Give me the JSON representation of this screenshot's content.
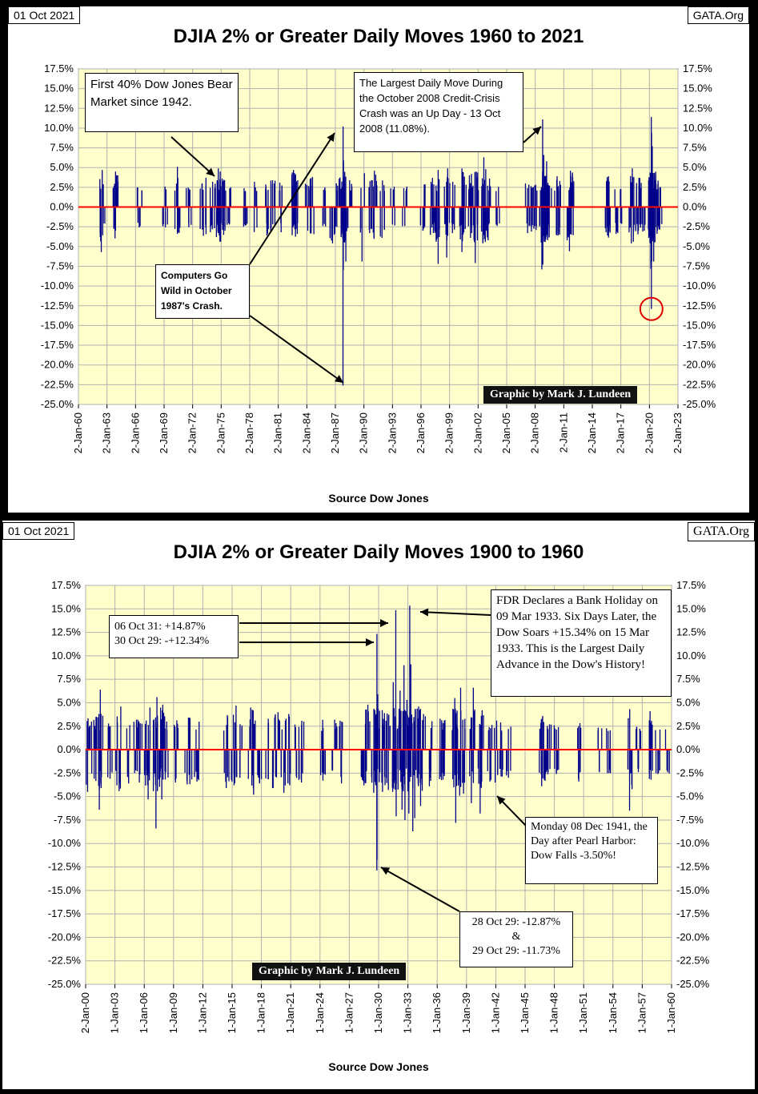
{
  "chart_data": [
    {
      "type": "bar",
      "date_stamp": "01 Oct 2021",
      "source_tag": "GATA.Org",
      "title": "DJIA 2% or Greater Daily Moves 1960 to 2021",
      "xlabel": "Source Dow Jones",
      "credit": "Graphic by Mark J. Lundeen",
      "ylim": [
        -25,
        17.5
      ],
      "y_ticks": [
        "17.5%",
        "15.0%",
        "12.5%",
        "10.0%",
        "7.5%",
        "5.0%",
        "2.5%",
        "0.0%",
        "-2.5%",
        "-5.0%",
        "-7.5%",
        "-10.0%",
        "-12.5%",
        "-15.0%",
        "-17.5%",
        "-20.0%",
        "-22.5%",
        "-25.0%"
      ],
      "x_ticks": [
        "2-Jan-60",
        "2-Jan-63",
        "2-Jan-66",
        "2-Jan-69",
        "2-Jan-72",
        "2-Jan-75",
        "2-Jan-78",
        "2-Jan-81",
        "2-Jan-84",
        "2-Jan-87",
        "2-Jan-90",
        "2-Jan-93",
        "2-Jan-96",
        "2-Jan-99",
        "2-Jan-02",
        "2-Jan-05",
        "2-Jan-08",
        "2-Jan-11",
        "2-Jan-14",
        "2-Jan-17",
        "2-Jan-20",
        "2-Jan-23"
      ],
      "xlim": [
        1960,
        2023
      ],
      "grid": true,
      "bar_color": "#00008B",
      "zero_line_color": "#FF0000",
      "moves": [
        [
          1962.4,
          -5.7
        ],
        [
          1962.5,
          4.7
        ],
        [
          1963.9,
          4.5
        ],
        [
          1963.9,
          -3.0
        ],
        [
          1966.4,
          -2.5
        ],
        [
          1969.1,
          2.6
        ],
        [
          1970.4,
          5.1
        ],
        [
          1970.4,
          -3.4
        ],
        [
          1971.6,
          2.3
        ],
        [
          1973.0,
          3.0
        ],
        [
          1973.4,
          3.7
        ],
        [
          1974.1,
          3.2
        ],
        [
          1974.5,
          -3.8
        ],
        [
          1974.7,
          4.9
        ],
        [
          1974.8,
          -3.6
        ],
        [
          1974.9,
          4.5
        ],
        [
          1975.1,
          3.6
        ],
        [
          1975.4,
          -3.0
        ],
        [
          1976.0,
          2.5
        ],
        [
          1977.6,
          -2.3
        ],
        [
          1978.5,
          3.2
        ],
        [
          1979.8,
          -3.6
        ],
        [
          1980.2,
          -3.0
        ],
        [
          1980.4,
          3.4
        ],
        [
          1981.3,
          -3.2
        ],
        [
          1982.6,
          4.7
        ],
        [
          1982.7,
          4.3
        ],
        [
          1982.8,
          3.9
        ],
        [
          1983.0,
          -3.4
        ],
        [
          1984.1,
          -3.0
        ],
        [
          1984.6,
          3.8
        ],
        [
          1985.9,
          2.5
        ],
        [
          1986.7,
          -4.6
        ],
        [
          1987.1,
          3.0
        ],
        [
          1987.6,
          -3.8
        ],
        [
          1987.8,
          -22.6
        ],
        [
          1987.81,
          10.2
        ],
        [
          1987.83,
          -8.0
        ],
        [
          1987.85,
          5.9
        ],
        [
          1988.1,
          -6.9
        ],
        [
          1988.5,
          3.4
        ],
        [
          1989.8,
          -6.9
        ],
        [
          1990.6,
          -3.3
        ],
        [
          1990.8,
          3.4
        ],
        [
          1991.1,
          4.6
        ],
        [
          1991.9,
          -3.9
        ],
        [
          1993.0,
          -2.2
        ],
        [
          1994.3,
          -2.4
        ],
        [
          1996.2,
          -3.0
        ],
        [
          1997.2,
          3.7
        ],
        [
          1997.3,
          -3.3
        ],
        [
          1997.8,
          -7.2
        ],
        [
          1997.8,
          4.7
        ],
        [
          1998.7,
          -6.4
        ],
        [
          1998.8,
          4.9
        ],
        [
          1999.3,
          -3.3
        ],
        [
          2000.3,
          4.9
        ],
        [
          2000.3,
          -5.7
        ],
        [
          2000.5,
          -3.2
        ],
        [
          2001.2,
          -3.9
        ],
        [
          2001.3,
          4.2
        ],
        [
          2001.7,
          -7.1
        ],
        [
          2001.8,
          4.5
        ],
        [
          2002.5,
          -4.6
        ],
        [
          2002.6,
          6.3
        ],
        [
          2002.8,
          4.8
        ],
        [
          2003.2,
          3.6
        ],
        [
          2004.0,
          -2.4
        ],
        [
          2007.2,
          -3.3
        ],
        [
          2007.6,
          -3.1
        ],
        [
          2007.8,
          2.5
        ],
        [
          2008.1,
          -2.9
        ],
        [
          2008.7,
          -7.9
        ],
        [
          2008.78,
          11.1
        ],
        [
          2008.8,
          -7.3
        ],
        [
          2008.9,
          6.6
        ],
        [
          2009.1,
          -4.1
        ],
        [
          2009.2,
          5.8
        ],
        [
          2009.3,
          -4.2
        ],
        [
          2009.5,
          2.7
        ],
        [
          2010.3,
          3.9
        ],
        [
          2010.4,
          -3.6
        ],
        [
          2011.6,
          -5.6
        ],
        [
          2011.7,
          4.6
        ],
        [
          2011.8,
          -3.5
        ],
        [
          2011.9,
          4.2
        ],
        [
          2015.6,
          -3.6
        ],
        [
          2015.7,
          3.9
        ],
        [
          2016.5,
          -3.4
        ],
        [
          2017.0,
          2.3
        ],
        [
          2018.1,
          -4.6
        ],
        [
          2018.2,
          4.9
        ],
        [
          2018.8,
          -3.1
        ],
        [
          2018.9,
          3.7
        ],
        [
          2019.3,
          -3.1
        ],
        [
          2020.1,
          -4.6
        ],
        [
          2020.15,
          -7.8
        ],
        [
          2020.2,
          11.4
        ],
        [
          2020.21,
          -12.9
        ],
        [
          2020.23,
          9.4
        ],
        [
          2020.25,
          -6.9
        ],
        [
          2020.3,
          7.7
        ],
        [
          2020.45,
          -6.9
        ],
        [
          2020.6,
          3.4
        ],
        [
          2020.8,
          -3.4
        ],
        [
          2020.9,
          2.9
        ],
        [
          2021.1,
          -2.1
        ]
      ],
      "annotations": [
        "First 40% Dow Jones Bear Market since 1942.",
        "Computers Go Wild in October 1987's Crash.",
        "The Largest Daily Move During the October 2008 Credit-Crisis Crash was an Up Day - 13 Oct 2008 (11.08%)."
      ],
      "circle_marker": {
        "x": 2020.21,
        "y": -12.9
      }
    },
    {
      "type": "bar",
      "date_stamp": "01 Oct 2021",
      "source_tag": "GATA.Org",
      "title": "DJIA 2% or Greater Daily Moves 1900 to 1960",
      "xlabel": "Source Dow Jones",
      "credit": "Graphic by Mark J. Lundeen",
      "ylim": [
        -25,
        17.5
      ],
      "y_ticks": [
        "17.5%",
        "15.0%",
        "12.5%",
        "10.0%",
        "7.5%",
        "5.0%",
        "2.5%",
        "0.0%",
        "-2.5%",
        "-5.0%",
        "-7.5%",
        "-10.0%",
        "-12.5%",
        "-15.0%",
        "-17.5%",
        "-20.0%",
        "-22.5%",
        "-25.0%"
      ],
      "x_ticks": [
        "2-Jan-00",
        "1-Jan-03",
        "1-Jan-06",
        "1-Jan-09",
        "1-Jan-12",
        "1-Jan-15",
        "1-Jan-18",
        "1-Jan-21",
        "1-Jan-24",
        "1-Jan-27",
        "1-Jan-30",
        "1-Jan-33",
        "1-Jan-36",
        "1-Jan-39",
        "1-Jan-42",
        "1-Jan-45",
        "1-Jan-48",
        "1-Jan-51",
        "1-Jan-54",
        "1-Jan-57",
        "1-Jan-60"
      ],
      "xlim": [
        1900,
        1960
      ],
      "grid": true,
      "bar_color": "#00008B",
      "zero_line_color": "#FF0000",
      "moves": [
        [
          1900.2,
          -4.5
        ],
        [
          1900.6,
          3.0
        ],
        [
          1901.1,
          3.5
        ],
        [
          1901.4,
          -6.4
        ],
        [
          1901.5,
          6.4
        ],
        [
          1902.5,
          -3.1
        ],
        [
          1903.2,
          -3.8
        ],
        [
          1903.6,
          4.6
        ],
        [
          1904.4,
          -3.6
        ],
        [
          1905.2,
          3.2
        ],
        [
          1905.5,
          -3.5
        ],
        [
          1906.2,
          3.1
        ],
        [
          1906.4,
          -5.3
        ],
        [
          1907.2,
          -8.4
        ],
        [
          1907.3,
          5.6
        ],
        [
          1907.8,
          -5.3
        ],
        [
          1907.9,
          4.8
        ],
        [
          1908.3,
          3.0
        ],
        [
          1909.2,
          -3.5
        ],
        [
          1910.4,
          -3.7
        ],
        [
          1910.6,
          3.4
        ],
        [
          1911.4,
          -3.4
        ],
        [
          1914.4,
          -4.1
        ],
        [
          1915.2,
          -3.8
        ],
        [
          1915.4,
          4.7
        ],
        [
          1915.8,
          -3.0
        ],
        [
          1916.9,
          4.5
        ],
        [
          1917.2,
          -4.8
        ],
        [
          1917.8,
          -3.6
        ],
        [
          1918.7,
          3.3
        ],
        [
          1919.2,
          -4.1
        ],
        [
          1919.7,
          4.0
        ],
        [
          1920.3,
          -4.6
        ],
        [
          1920.8,
          3.8
        ],
        [
          1921.6,
          -3.0
        ],
        [
          1922.1,
          -3.5
        ],
        [
          1924.3,
          -3.3
        ],
        [
          1925.5,
          3.2
        ],
        [
          1926.2,
          -3.6
        ],
        [
          1928.5,
          -3.8
        ],
        [
          1928.9,
          4.8
        ],
        [
          1929.5,
          -4.6
        ],
        [
          1929.82,
          -12.87
        ],
        [
          1929.83,
          12.34
        ],
        [
          1929.84,
          -11.73
        ],
        [
          1929.9,
          5.9
        ],
        [
          1930.4,
          -4.5
        ],
        [
          1930.6,
          3.9
        ],
        [
          1931.0,
          -4.3
        ],
        [
          1931.5,
          7.2
        ],
        [
          1931.76,
          14.87
        ],
        [
          1931.8,
          -7.1
        ],
        [
          1932.2,
          6.3
        ],
        [
          1932.4,
          -6.4
        ],
        [
          1932.6,
          9.0
        ],
        [
          1932.7,
          -7.5
        ],
        [
          1932.9,
          5.3
        ],
        [
          1933.1,
          -6.8
        ],
        [
          1933.19,
          15.34
        ],
        [
          1933.3,
          9.1
        ],
        [
          1933.5,
          -8.7
        ],
        [
          1933.7,
          -7.3
        ],
        [
          1934.1,
          4.6
        ],
        [
          1934.3,
          -6.0
        ],
        [
          1934.6,
          3.8
        ],
        [
          1935.2,
          -3.9
        ],
        [
          1936.3,
          3.3
        ],
        [
          1936.6,
          -3.2
        ],
        [
          1937.7,
          -4.0
        ],
        [
          1937.8,
          5.5
        ],
        [
          1937.9,
          -7.8
        ],
        [
          1938.3,
          -4.9
        ],
        [
          1938.4,
          6.6
        ],
        [
          1938.7,
          -4.7
        ],
        [
          1939.5,
          -5.7
        ],
        [
          1939.7,
          6.6
        ],
        [
          1940.4,
          -6.8
        ],
        [
          1940.6,
          4.2
        ],
        [
          1941.4,
          -3.4
        ],
        [
          1941.94,
          -3.5
        ],
        [
          1942.5,
          2.9
        ],
        [
          1943.3,
          -3.0
        ],
        [
          1946.7,
          -3.9
        ],
        [
          1946.8,
          3.6
        ],
        [
          1947.1,
          -2.6
        ],
        [
          1947.5,
          2.7
        ],
        [
          1948.2,
          -2.6
        ],
        [
          1950.5,
          -3.4
        ],
        [
          1952.6,
          -2.3
        ],
        [
          1953.6,
          -2.5
        ],
        [
          1955.7,
          -6.5
        ],
        [
          1956.6,
          -2.4
        ],
        [
          1957.8,
          4.1
        ],
        [
          1957.9,
          -3.2
        ],
        [
          1958.6,
          -2.6
        ],
        [
          1959.6,
          -2.4
        ]
      ],
      "annotations": [
        "06 Oct 31: +14.87%",
        "30 Oct 29: -+12.34%",
        "FDR Declares a Bank Holiday on 09 Mar 1933. Six Days Later, the Dow Soars +15.34% on 15 Mar 1933. This is the Largest Daily Advance in the Dow's History!",
        "Monday 08 Dec 1941, the Day after Pearl Harbor: Dow Falls -3.50%!",
        "28 Oct 29: -12.87%",
        "&",
        "29 Oct 29: -11.73%"
      ]
    }
  ]
}
